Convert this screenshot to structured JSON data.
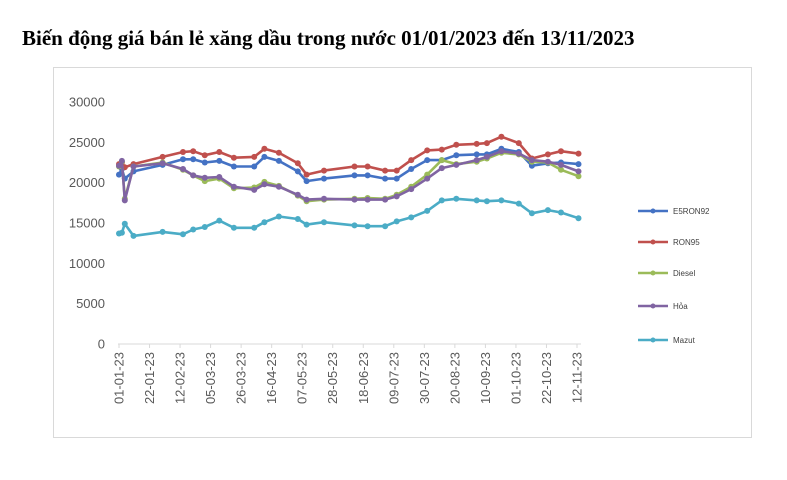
{
  "title": "Biến động giá bán lẻ xăng dầu trong nước 01/01/2023 đến 13/11/2023",
  "chart_data": {
    "type": "line",
    "title": "Biến động giá bán lẻ xăng dầu trong nước 01/01/2023 đến 13/11/2023",
    "xlabel": "",
    "ylabel": "",
    "ylim": [
      0,
      30000
    ],
    "yticks": [
      "0",
      "5000",
      "10000",
      "15000",
      "20000",
      "25000",
      "30000"
    ],
    "xticks": [
      "01-01-23",
      "22-01-23",
      "12-02-23",
      "05-03-23",
      "26-03-23",
      "16-04-23",
      "07-05-23",
      "28-05-23",
      "18-06-23",
      "09-07-23",
      "30-07-23",
      "20-08-23",
      "10-09-23",
      "01-10-23",
      "22-10-23",
      "12-11-23"
    ],
    "grid": false,
    "legend_position": "right",
    "series": [
      {
        "name": "E5RON92",
        "color": "#4472c4",
        "points": [
          [
            "2023-01-01",
            21000
          ],
          [
            "2023-01-03",
            21700
          ],
          [
            "2023-01-05",
            20500
          ],
          [
            "2023-01-11",
            21400
          ],
          [
            "2023-01-31",
            22200
          ],
          [
            "2023-02-14",
            22900
          ],
          [
            "2023-02-21",
            22900
          ],
          [
            "2023-03-01",
            22500
          ],
          [
            "2023-03-11",
            22700
          ],
          [
            "2023-03-21",
            22000
          ],
          [
            "2023-04-04",
            22000
          ],
          [
            "2023-04-11",
            23200
          ],
          [
            "2023-04-21",
            22700
          ],
          [
            "2023-05-04",
            21400
          ],
          [
            "2023-05-10",
            20200
          ],
          [
            "2023-05-22",
            20500
          ],
          [
            "2023-06-12",
            20900
          ],
          [
            "2023-06-21",
            20900
          ],
          [
            "2023-07-03",
            20500
          ],
          [
            "2023-07-11",
            20500
          ],
          [
            "2023-07-21",
            21700
          ],
          [
            "2023-08-01",
            22800
          ],
          [
            "2023-08-11",
            22800
          ],
          [
            "2023-08-21",
            23400
          ],
          [
            "2023-09-04",
            23500
          ],
          [
            "2023-09-11",
            23500
          ],
          [
            "2023-09-21",
            24200
          ],
          [
            "2023-10-03",
            23800
          ],
          [
            "2023-10-12",
            22100
          ],
          [
            "2023-10-23",
            22400
          ],
          [
            "2023-11-01",
            22500
          ],
          [
            "2023-11-13",
            22300
          ]
        ]
      },
      {
        "name": "RON95",
        "color": "#c0504d",
        "points": [
          [
            "2023-01-01",
            22300
          ],
          [
            "2023-01-03",
            22500
          ],
          [
            "2023-01-05",
            21900
          ],
          [
            "2023-01-11",
            22300
          ],
          [
            "2023-01-31",
            23200
          ],
          [
            "2023-02-14",
            23800
          ],
          [
            "2023-02-21",
            23900
          ],
          [
            "2023-03-01",
            23400
          ],
          [
            "2023-03-11",
            23800
          ],
          [
            "2023-03-21",
            23100
          ],
          [
            "2023-04-04",
            23200
          ],
          [
            "2023-04-11",
            24200
          ],
          [
            "2023-04-21",
            23700
          ],
          [
            "2023-05-04",
            22400
          ],
          [
            "2023-05-10",
            21000
          ],
          [
            "2023-05-22",
            21500
          ],
          [
            "2023-06-12",
            22000
          ],
          [
            "2023-06-21",
            22000
          ],
          [
            "2023-07-03",
            21500
          ],
          [
            "2023-07-11",
            21500
          ],
          [
            "2023-07-21",
            22800
          ],
          [
            "2023-08-01",
            24000
          ],
          [
            "2023-08-11",
            24100
          ],
          [
            "2023-08-21",
            24700
          ],
          [
            "2023-09-04",
            24800
          ],
          [
            "2023-09-11",
            24900
          ],
          [
            "2023-09-21",
            25700
          ],
          [
            "2023-10-03",
            24900
          ],
          [
            "2023-10-12",
            23000
          ],
          [
            "2023-10-23",
            23500
          ],
          [
            "2023-11-01",
            23900
          ],
          [
            "2023-11-13",
            23600
          ]
        ]
      },
      {
        "name": "Diesel",
        "color": "#9bbb59",
        "points": [
          [
            "2023-01-01",
            22000
          ],
          [
            "2023-01-03",
            22600
          ],
          [
            "2023-01-05",
            18000
          ],
          [
            "2023-01-11",
            22000
          ],
          [
            "2023-01-31",
            22500
          ],
          [
            "2023-02-14",
            21600
          ],
          [
            "2023-02-21",
            20900
          ],
          [
            "2023-03-01",
            20200
          ],
          [
            "2023-03-11",
            20500
          ],
          [
            "2023-03-21",
            19300
          ],
          [
            "2023-04-04",
            19400
          ],
          [
            "2023-04-11",
            20100
          ],
          [
            "2023-04-21",
            19600
          ],
          [
            "2023-05-04",
            18400
          ],
          [
            "2023-05-10",
            17700
          ],
          [
            "2023-05-22",
            17900
          ],
          [
            "2023-06-12",
            18000
          ],
          [
            "2023-06-21",
            18100
          ],
          [
            "2023-07-03",
            18000
          ],
          [
            "2023-07-11",
            18500
          ],
          [
            "2023-07-21",
            19500
          ],
          [
            "2023-08-01",
            21000
          ],
          [
            "2023-08-11",
            22800
          ],
          [
            "2023-08-21",
            22300
          ],
          [
            "2023-09-04",
            22600
          ],
          [
            "2023-09-11",
            23000
          ],
          [
            "2023-09-21",
            23700
          ],
          [
            "2023-10-03",
            23500
          ],
          [
            "2023-10-12",
            22600
          ],
          [
            "2023-10-23",
            22500
          ],
          [
            "2023-11-01",
            21600
          ],
          [
            "2023-11-13",
            20800
          ]
        ]
      },
      {
        "name": "Hỏa",
        "color": "#8064a2",
        "points": [
          [
            "2023-01-01",
            22100
          ],
          [
            "2023-01-03",
            22700
          ],
          [
            "2023-01-05",
            17800
          ],
          [
            "2023-01-11",
            22000
          ],
          [
            "2023-01-31",
            22400
          ],
          [
            "2023-02-14",
            21700
          ],
          [
            "2023-02-21",
            20900
          ],
          [
            "2023-03-01",
            20600
          ],
          [
            "2023-03-11",
            20700
          ],
          [
            "2023-03-21",
            19500
          ],
          [
            "2023-04-04",
            19100
          ],
          [
            "2023-04-11",
            19800
          ],
          [
            "2023-04-21",
            19500
          ],
          [
            "2023-05-04",
            18500
          ],
          [
            "2023-05-10",
            17900
          ],
          [
            "2023-05-22",
            18000
          ],
          [
            "2023-06-12",
            17900
          ],
          [
            "2023-06-21",
            17900
          ],
          [
            "2023-07-03",
            17900
          ],
          [
            "2023-07-11",
            18300
          ],
          [
            "2023-07-21",
            19200
          ],
          [
            "2023-08-01",
            20500
          ],
          [
            "2023-08-11",
            21800
          ],
          [
            "2023-08-21",
            22200
          ],
          [
            "2023-09-04",
            22800
          ],
          [
            "2023-09-11",
            23200
          ],
          [
            "2023-09-21",
            23900
          ],
          [
            "2023-10-03",
            23600
          ],
          [
            "2023-10-12",
            22800
          ],
          [
            "2023-10-23",
            22600
          ],
          [
            "2023-11-01",
            22200
          ],
          [
            "2023-11-13",
            21400
          ]
        ]
      },
      {
        "name": "Mazut",
        "color": "#4bacc6",
        "points": [
          [
            "2023-01-01",
            13700
          ],
          [
            "2023-01-03",
            13800
          ],
          [
            "2023-01-05",
            14900
          ],
          [
            "2023-01-11",
            13400
          ],
          [
            "2023-01-31",
            13900
          ],
          [
            "2023-02-14",
            13600
          ],
          [
            "2023-02-21",
            14200
          ],
          [
            "2023-03-01",
            14500
          ],
          [
            "2023-03-11",
            15300
          ],
          [
            "2023-03-21",
            14400
          ],
          [
            "2023-04-04",
            14400
          ],
          [
            "2023-04-11",
            15100
          ],
          [
            "2023-04-21",
            15800
          ],
          [
            "2023-05-04",
            15500
          ],
          [
            "2023-05-10",
            14800
          ],
          [
            "2023-05-22",
            15100
          ],
          [
            "2023-06-12",
            14700
          ],
          [
            "2023-06-21",
            14600
          ],
          [
            "2023-07-03",
            14600
          ],
          [
            "2023-07-11",
            15200
          ],
          [
            "2023-07-21",
            15700
          ],
          [
            "2023-08-01",
            16500
          ],
          [
            "2023-08-11",
            17800
          ],
          [
            "2023-08-21",
            18000
          ],
          [
            "2023-09-04",
            17800
          ],
          [
            "2023-09-11",
            17700
          ],
          [
            "2023-09-21",
            17800
          ],
          [
            "2023-10-03",
            17400
          ],
          [
            "2023-10-12",
            16200
          ],
          [
            "2023-10-23",
            16600
          ],
          [
            "2023-11-01",
            16300
          ],
          [
            "2023-11-13",
            15600
          ]
        ]
      }
    ]
  }
}
